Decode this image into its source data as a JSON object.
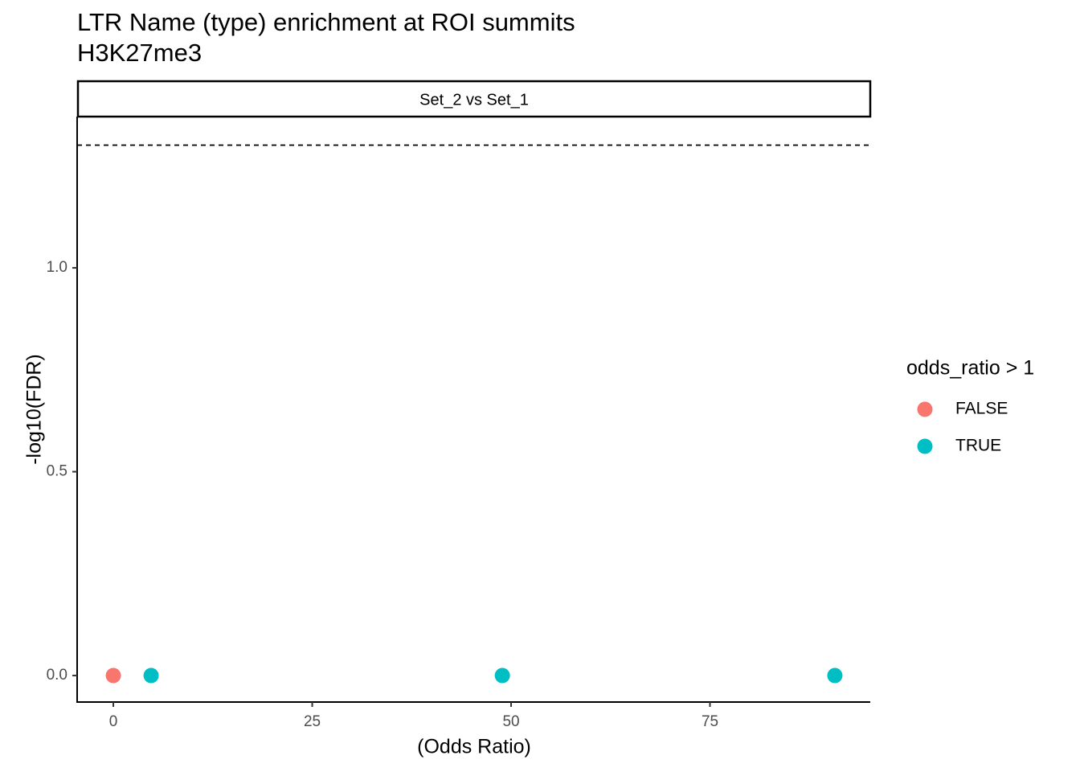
{
  "chart_data": {
    "type": "scatter",
    "title": "LTR Name (type) enrichment at ROI summits",
    "subtitle": "H3K27me3",
    "facet_label": "Set_2 vs Set_1",
    "x_label": "(Odds Ratio)",
    "y_label": "-log10(FDR)",
    "legend_title": "odds_ratio > 1",
    "legend_position": "right",
    "grid": false,
    "hline": 1.301,
    "xlim": [
      -4.55,
      95.15
    ],
    "ylim": [
      -0.065,
      1.371
    ],
    "xticks": [
      0,
      25,
      50,
      75
    ],
    "yticks": [
      {
        "value": 0,
        "label": "0.0"
      },
      0.5,
      {
        "value": 1,
        "label": "1.0"
      }
    ],
    "series": [
      {
        "name": "FALSE",
        "color": "#F8766D",
        "x": [
          0
        ],
        "values": [
          0
        ]
      },
      {
        "name": "TRUE",
        "color": "#00BFC4",
        "x": [
          4.75,
          48.9,
          90.7
        ],
        "values": [
          0,
          0,
          0
        ]
      }
    ]
  }
}
